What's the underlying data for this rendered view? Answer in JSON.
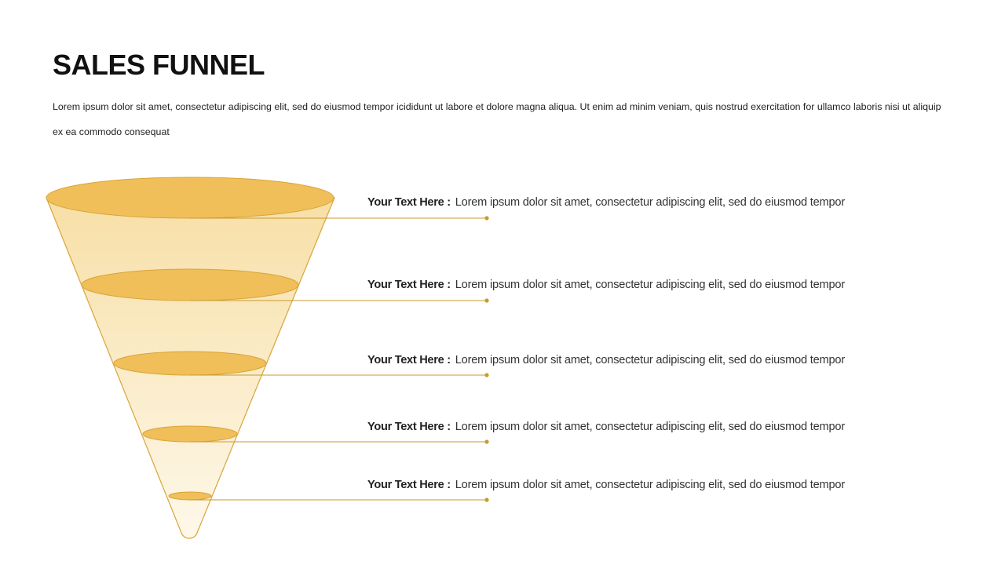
{
  "slide": {
    "title": "SALES FUNNEL",
    "intro": "Lorem ipsum dolor sit amet, consectetur adipiscing elit, sed do eiusmod tempor icididunt ut labore et dolore magna aliqua. Ut enim ad minim veniam, quis nostrud exercitation for ullamco laboris nisi ut aliquip ex ea commodo consequat"
  },
  "colors": {
    "accent": "#F0BF5A",
    "accent_stroke": "#D9A437",
    "funnel_fill_top": "#F7DFA6",
    "funnel_fill_bottom": "#FEF8EA",
    "line": "#C99A2E"
  },
  "stages": [
    {
      "label": "Your Text Here :",
      "text": "Lorem ipsum dolor sit amet, consectetur adipiscing elit, sed do eiusmod tempor"
    },
    {
      "label": "Your Text Here :",
      "text": "Lorem ipsum dolor sit amet, consectetur adipiscing elit, sed do eiusmod tempor"
    },
    {
      "label": "Your Text Here :",
      "text": "Lorem ipsum dolor sit amet, consectetur adipiscing elit, sed do eiusmod tempor"
    },
    {
      "label": "Your Text Here :",
      "text": "Lorem ipsum dolor sit amet, consectetur adipiscing elit, sed do eiusmod tempor"
    },
    {
      "label": "Your Text Here :",
      "text": "Lorem ipsum dolor sit amet, consectetur adipiscing elit, sed do eiusmod tempor"
    }
  ]
}
